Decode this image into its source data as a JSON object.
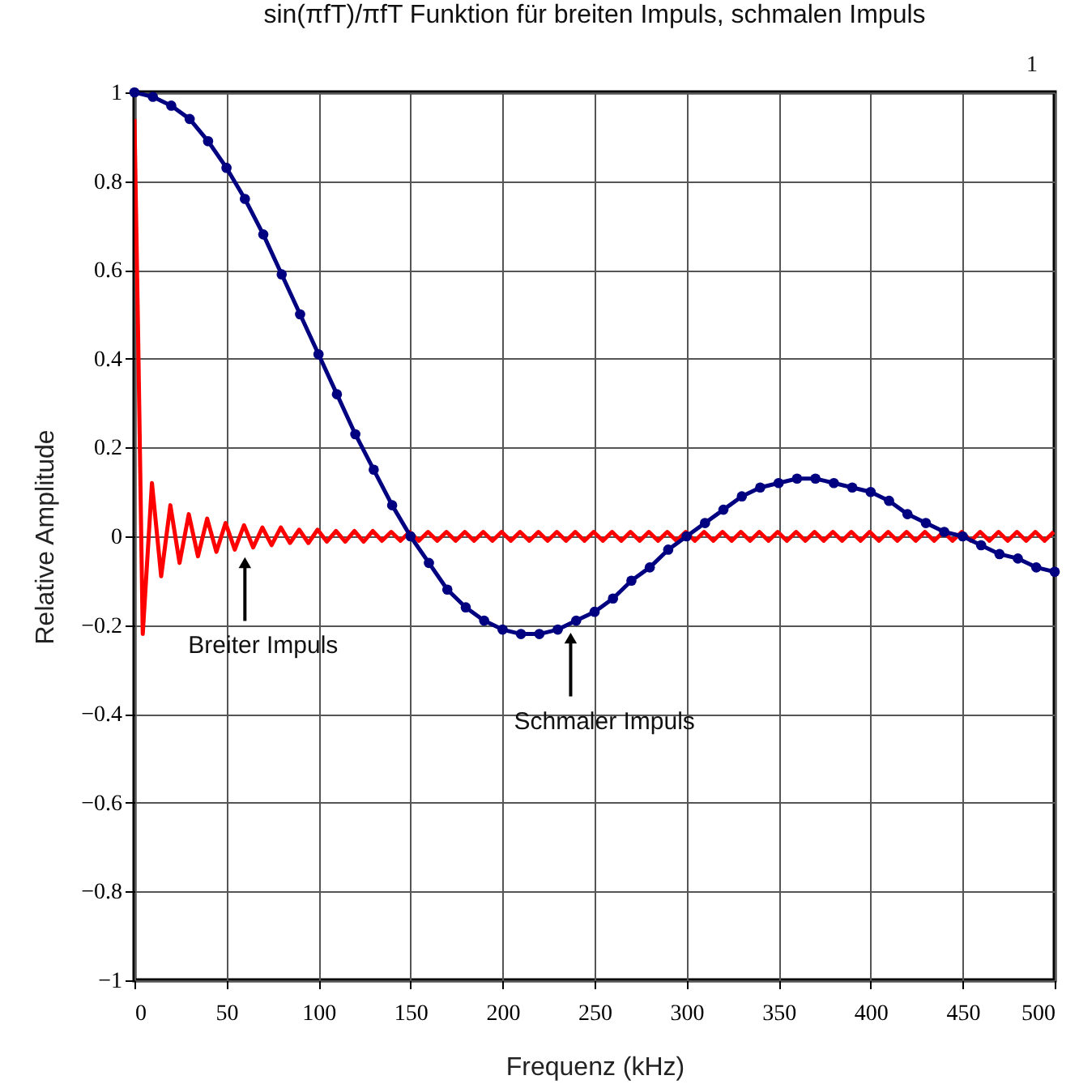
{
  "chart_data": {
    "type": "line",
    "title": "sin(πfT)/πfT Funktion für breiten Impuls, schmalen Impuls",
    "xlabel": "Frequenz (kHz)",
    "ylabel": "Relative Amplitude",
    "xlim": [
      0,
      500
    ],
    "xticks": [
      0,
      50,
      100,
      150,
      200,
      250,
      300,
      350,
      400,
      450,
      500
    ],
    "ylim": [
      -1,
      1
    ],
    "yticks": [
      -1,
      -0.8,
      -0.6,
      -0.4,
      -0.2,
      0,
      0.2,
      0.4,
      0.6,
      0.8,
      1
    ],
    "grid": true,
    "annotations": [
      {
        "text": "Breiter Impuls",
        "x": 60,
        "y": -0.03
      },
      {
        "text": "Schmaler Impuls",
        "x": 237,
        "y": -0.2
      },
      "1"
    ],
    "series": [
      {
        "color": "#ff0000",
        "marker": "none",
        "x": [
          0,
          2,
          4.5,
          9.5,
          14.5,
          19.5,
          24.5,
          29.5,
          34.5,
          39.5,
          44.5,
          49.5,
          54.5,
          59.5,
          64.5,
          69.5,
          74.5,
          79.5,
          84.5,
          89.5,
          94.5,
          99.5,
          104.5,
          109.5,
          114.5,
          119.5,
          124.5,
          129.5,
          134.5,
          139.5,
          144.5,
          149.5,
          154.5,
          159.5,
          164.5,
          169.5,
          174.5,
          179.5,
          184.5,
          189.5,
          194.5,
          199.5,
          204.5,
          209.5,
          214.5,
          219.5,
          224.5,
          229.5,
          234.5,
          239.5,
          244.5,
          249.5,
          254.5,
          259.5,
          264.5,
          269.5,
          274.5,
          279.5,
          284.5,
          289.5,
          294.5,
          299.5,
          304.5,
          309.5,
          314.5,
          319.5,
          324.5,
          329.5,
          334.5,
          339.5,
          344.5,
          349.5,
          354.5,
          359.5,
          364.5,
          369.5,
          374.5,
          379.5,
          384.5,
          389.5,
          394.5,
          399.5,
          404.5,
          409.5,
          414.5,
          419.5,
          424.5,
          429.5,
          434.5,
          439.5,
          444.5,
          449.5,
          454.5,
          459.5,
          464.5,
          469.5,
          474.5,
          479.5,
          484.5,
          489.5,
          494.5,
          499.5
        ],
        "values": [
          0.94,
          0.45,
          -0.22,
          0.12,
          -0.09,
          0.07,
          -0.06,
          0.05,
          -0.045,
          0.04,
          -0.035,
          0.03,
          -0.03,
          0.025,
          -0.025,
          0.02,
          -0.02,
          0.02,
          -0.015,
          0.015,
          -0.015,
          0.015,
          -0.012,
          0.012,
          -0.012,
          0.012,
          -0.012,
          0.012,
          -0.01,
          0.01,
          -0.01,
          0.01,
          -0.01,
          0.01,
          -0.01,
          0.01,
          -0.01,
          0.01,
          -0.01,
          0.01,
          -0.01,
          0.01,
          -0.01,
          0.01,
          -0.01,
          0.01,
          -0.01,
          0.01,
          -0.01,
          0.01,
          -0.01,
          0.01,
          -0.01,
          0.01,
          -0.01,
          0.01,
          -0.01,
          0.01,
          -0.01,
          0.01,
          -0.01,
          0.01,
          -0.01,
          0.01,
          -0.01,
          0.01,
          -0.01,
          0.01,
          -0.01,
          0.01,
          -0.01,
          0.01,
          -0.01,
          0.01,
          -0.01,
          0.01,
          -0.01,
          0.01,
          -0.01,
          0.01,
          -0.01,
          0.01,
          -0.01,
          0.01,
          -0.01,
          0.01,
          -0.01,
          0.01,
          -0.01,
          0.01,
          -0.01,
          0.01,
          -0.01,
          0.01,
          -0.01,
          0.01,
          -0.01,
          0.01,
          -0.01,
          0.01,
          -0.01,
          0.01
        ]
      },
      {
        "color": "#000080",
        "marker": "circle",
        "x": [
          0,
          10,
          20,
          30,
          40,
          50,
          60,
          70,
          80,
          90,
          100,
          110,
          120,
          130,
          140,
          150,
          160,
          170,
          180,
          190,
          200,
          210,
          220,
          230,
          240,
          250,
          260,
          270,
          280,
          290,
          300,
          310,
          320,
          330,
          340,
          350,
          360,
          370,
          380,
          390,
          400,
          410,
          420,
          430,
          440,
          450,
          460,
          470,
          480,
          490,
          500
        ],
        "values": [
          1,
          0.99,
          0.97,
          0.94,
          0.89,
          0.83,
          0.76,
          0.68,
          0.59,
          0.5,
          0.41,
          0.32,
          0.23,
          0.15,
          0.07,
          0,
          -0.06,
          -0.12,
          -0.16,
          -0.19,
          -0.21,
          -0.22,
          -0.22,
          -0.21,
          -0.19,
          -0.17,
          -0.14,
          -0.1,
          -0.07,
          -0.03,
          0,
          0.03,
          0.06,
          0.09,
          0.11,
          0.12,
          0.13,
          0.13,
          0.12,
          0.11,
          0.1,
          0.08,
          0.05,
          0.03,
          0.01,
          0,
          -0.02,
          -0.04,
          -0.05,
          -0.07,
          -0.08
        ]
      }
    ]
  }
}
